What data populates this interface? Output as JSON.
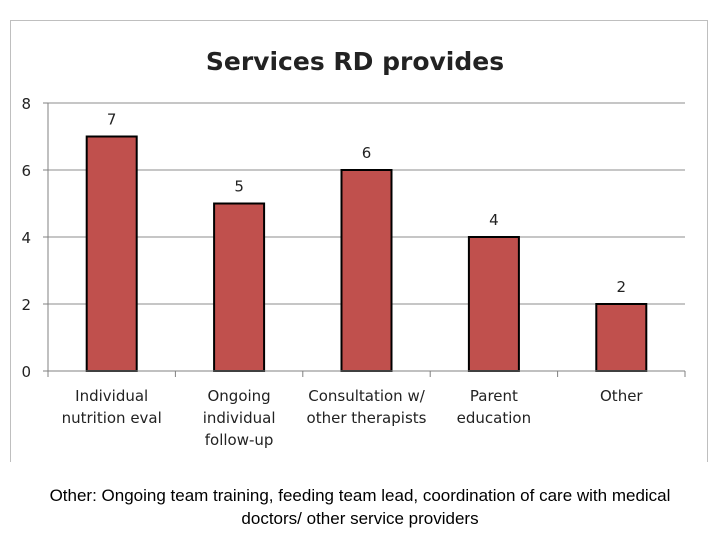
{
  "chart_data": {
    "type": "bar",
    "title": "Services RD provides",
    "categories": [
      [
        "Individual",
        "nutrition eval"
      ],
      [
        "Ongoing",
        "individual",
        "follow-up"
      ],
      [
        "Consultation w/",
        "other therapists"
      ],
      [
        "Parent",
        "education"
      ],
      [
        "Other"
      ]
    ],
    "values": [
      7,
      5,
      6,
      4,
      2
    ],
    "data_labels": [
      "7",
      "5",
      "6",
      "4",
      "2"
    ],
    "ylim": [
      0,
      8
    ],
    "yticks": [
      "0",
      "2",
      "4",
      "6",
      "8"
    ],
    "xlabel": "",
    "ylabel": "",
    "grid": true,
    "bar_color": "#c0504d",
    "bar_edge_color": "#000000"
  },
  "caption": "Other: Ongoing team training, feeding team lead, coordination of care with medical doctors/ other service providers"
}
